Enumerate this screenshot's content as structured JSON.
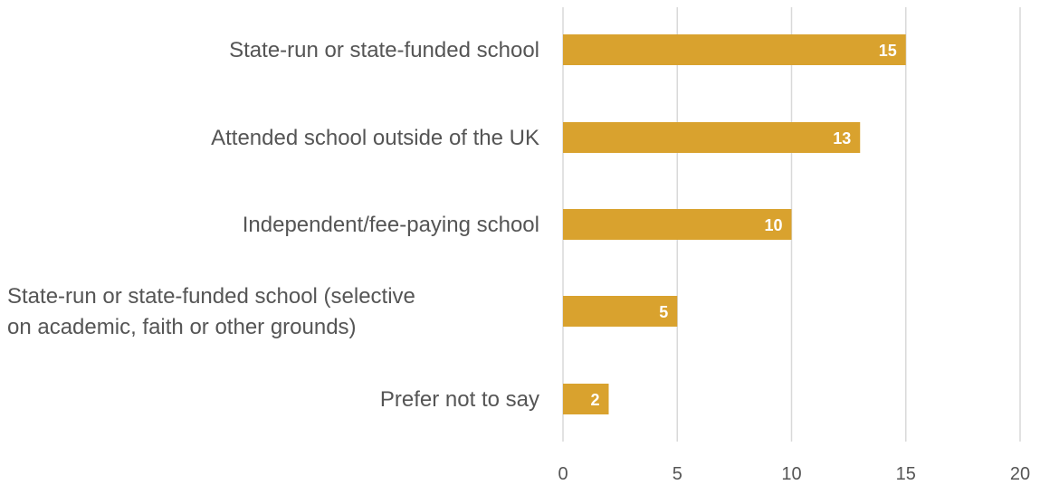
{
  "chart_data": {
    "type": "bar",
    "orientation": "horizontal",
    "categories": [
      [
        "State-run or state-funded school "
      ],
      [
        "Attended school outside of the UK"
      ],
      [
        "Independent/fee-paying school "
      ],
      [
        "State-run or state-funded school (selective",
        "on academic, faith or other grounds)"
      ],
      [
        "Prefer not to say"
      ]
    ],
    "values": [
      15,
      13,
      10,
      5,
      2
    ],
    "xlim": [
      0,
      20
    ],
    "xticks": [
      0,
      5,
      10,
      15,
      20
    ],
    "grid": "vertical",
    "title": "",
    "xlabel": "",
    "ylabel": "",
    "bar_color": "#D9A22E",
    "data_label_color": "#FFFFFF",
    "grid_color": "#D9D9D9",
    "text_color": "#555555"
  }
}
